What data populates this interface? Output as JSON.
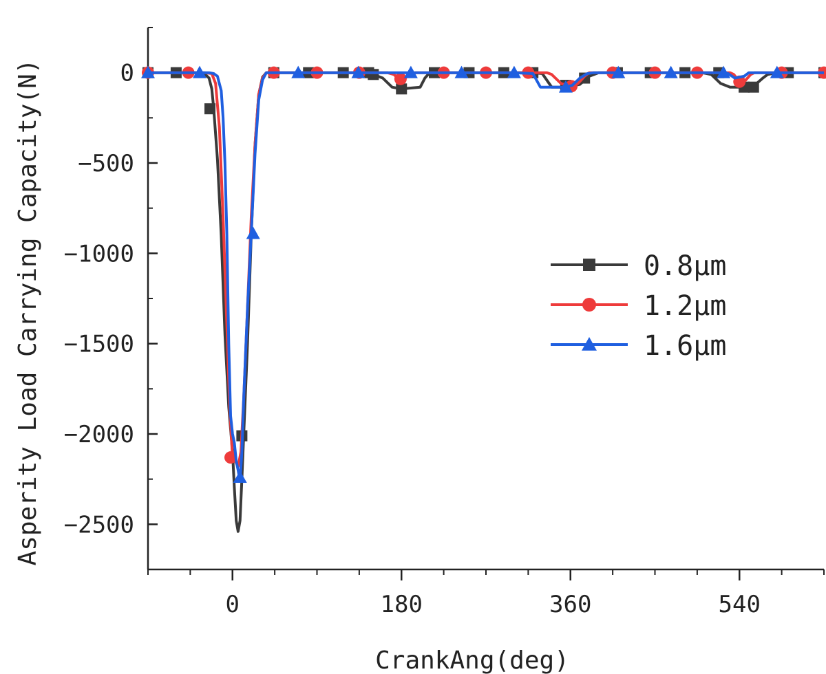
{
  "chart_data": {
    "type": "line",
    "xlabel": "CrankAng(deg)",
    "ylabel": "Asperity Load Carrying Capacity(N)",
    "xlim": [
      -90,
      630
    ],
    "ylim": [
      -2750,
      250
    ],
    "xticks": [
      0,
      180,
      360,
      540
    ],
    "yticks": [
      0,
      -500,
      -1000,
      -1500,
      -2000,
      -2500
    ],
    "x_minor_step": 45,
    "y_minor_step": 250,
    "grid": false,
    "legend_position": "right-center",
    "series": [
      {
        "name": "0.8μm",
        "color": "#3a3a3a",
        "marker": "square",
        "line": [
          [
            -90,
            0
          ],
          [
            -40,
            0
          ],
          [
            -30,
            -5
          ],
          [
            -25,
            -30
          ],
          [
            -22,
            -90
          ],
          [
            -20,
            -200
          ],
          [
            -16,
            -480
          ],
          [
            -12,
            -900
          ],
          [
            -8,
            -1450
          ],
          [
            -4,
            -1850
          ],
          [
            0,
            -2100
          ],
          [
            2,
            -2300
          ],
          [
            4,
            -2480
          ],
          [
            6,
            -2540
          ],
          [
            8,
            -2480
          ],
          [
            10,
            -2250
          ],
          [
            12,
            -2000
          ],
          [
            16,
            -1500
          ],
          [
            20,
            -900
          ],
          [
            24,
            -400
          ],
          [
            28,
            -120
          ],
          [
            32,
            -25
          ],
          [
            36,
            0
          ],
          [
            140,
            0
          ],
          [
            150,
            -10
          ],
          [
            160,
            -30
          ],
          [
            170,
            -80
          ],
          [
            180,
            -90
          ],
          [
            190,
            -85
          ],
          [
            200,
            -80
          ],
          [
            205,
            -30
          ],
          [
            210,
            0
          ],
          [
            320,
            0
          ],
          [
            330,
            -5
          ],
          [
            340,
            -80
          ],
          [
            350,
            -80
          ],
          [
            360,
            -75
          ],
          [
            370,
            -65
          ],
          [
            380,
            -20
          ],
          [
            390,
            0
          ],
          [
            500,
            0
          ],
          [
            510,
            -10
          ],
          [
            520,
            -60
          ],
          [
            530,
            -80
          ],
          [
            545,
            -80
          ],
          [
            555,
            -75
          ],
          [
            565,
            -30
          ],
          [
            570,
            -10
          ],
          [
            580,
            0
          ],
          [
            630,
            0
          ]
        ],
        "markers": [
          [
            -90,
            0
          ],
          [
            -60,
            0
          ],
          [
            -24,
            -200
          ],
          [
            10,
            -2010
          ],
          [
            44,
            0
          ],
          [
            81,
            0
          ],
          [
            118,
            0
          ],
          [
            145,
            0
          ],
          [
            150,
            -10
          ],
          [
            180,
            -90
          ],
          [
            215,
            0
          ],
          [
            252,
            0
          ],
          [
            289,
            0
          ],
          [
            320,
            0
          ],
          [
            355,
            -70
          ],
          [
            375,
            -30
          ],
          [
            410,
            0
          ],
          [
            445,
            0
          ],
          [
            482,
            0
          ],
          [
            518,
            0
          ],
          [
            545,
            -80
          ],
          [
            555,
            -80
          ],
          [
            592,
            0
          ],
          [
            630,
            0
          ]
        ]
      },
      {
        "name": "1.2μm",
        "color": "#ee3b3b",
        "marker": "circle",
        "line": [
          [
            -90,
            0
          ],
          [
            -30,
            0
          ],
          [
            -22,
            -5
          ],
          [
            -18,
            -60
          ],
          [
            -14,
            -300
          ],
          [
            -10,
            -800
          ],
          [
            -6,
            -1400
          ],
          [
            -3,
            -1850
          ],
          [
            0,
            -2130
          ],
          [
            3,
            -2150
          ],
          [
            6,
            -2180
          ],
          [
            9,
            -2100
          ],
          [
            12,
            -1800
          ],
          [
            16,
            -1300
          ],
          [
            20,
            -800
          ],
          [
            24,
            -400
          ],
          [
            28,
            -120
          ],
          [
            32,
            -30
          ],
          [
            36,
            0
          ],
          [
            165,
            0
          ],
          [
            172,
            -10
          ],
          [
            178,
            -40
          ],
          [
            184,
            -30
          ],
          [
            190,
            -5
          ],
          [
            195,
            0
          ],
          [
            335,
            0
          ],
          [
            340,
            -10
          ],
          [
            350,
            -60
          ],
          [
            360,
            -75
          ],
          [
            368,
            -60
          ],
          [
            375,
            -20
          ],
          [
            380,
            0
          ],
          [
            530,
            0
          ],
          [
            534,
            -10
          ],
          [
            540,
            -50
          ],
          [
            546,
            -45
          ],
          [
            552,
            -10
          ],
          [
            556,
            0
          ],
          [
            630,
            0
          ]
        ],
        "markers": [
          [
            -90,
            0
          ],
          [
            -47,
            0
          ],
          [
            -2,
            -2130
          ],
          [
            44,
            0
          ],
          [
            90,
            0
          ],
          [
            135,
            0
          ],
          [
            179,
            -35
          ],
          [
            225,
            0
          ],
          [
            270,
            0
          ],
          [
            315,
            0
          ],
          [
            361,
            -75
          ],
          [
            405,
            0
          ],
          [
            450,
            0
          ],
          [
            495,
            0
          ],
          [
            540,
            -50
          ],
          [
            585,
            0
          ],
          [
            630,
            0
          ]
        ]
      },
      {
        "name": "1.6μm",
        "color": "#1f5fe0",
        "marker": "triangle",
        "line": [
          [
            -90,
            0
          ],
          [
            -25,
            0
          ],
          [
            -20,
            -5
          ],
          [
            -16,
            -20
          ],
          [
            -12,
            -100
          ],
          [
            -10,
            -250
          ],
          [
            -8,
            -500
          ],
          [
            -6,
            -900
          ],
          [
            -4,
            -1500
          ],
          [
            -2,
            -1900
          ],
          [
            0,
            -2000
          ],
          [
            2,
            -2050
          ],
          [
            4,
            -2150
          ],
          [
            6,
            -2200
          ],
          [
            8,
            -2260
          ],
          [
            10,
            -2100
          ],
          [
            12,
            -1800
          ],
          [
            16,
            -1300
          ],
          [
            20,
            -890
          ],
          [
            24,
            -450
          ],
          [
            28,
            -150
          ],
          [
            32,
            -40
          ],
          [
            36,
            0
          ],
          [
            180,
            0
          ],
          [
            190,
            0
          ],
          [
            300,
            0
          ],
          [
            320,
            -5
          ],
          [
            328,
            -80
          ],
          [
            340,
            -80
          ],
          [
            355,
            -80
          ],
          [
            362,
            -70
          ],
          [
            370,
            -30
          ],
          [
            378,
            -5
          ],
          [
            385,
            0
          ],
          [
            520,
            0
          ],
          [
            528,
            -5
          ],
          [
            535,
            -30
          ],
          [
            545,
            -20
          ],
          [
            550,
            0
          ],
          [
            630,
            0
          ]
        ],
        "markers": [
          [
            -90,
            0
          ],
          [
            -35,
            0
          ],
          [
            8,
            -2240
          ],
          [
            22,
            -890
          ],
          [
            70,
            0
          ],
          [
            134,
            0
          ],
          [
            190,
            0
          ],
          [
            244,
            0
          ],
          [
            300,
            0
          ],
          [
            355,
            -80
          ],
          [
            411,
            0
          ],
          [
            467,
            0
          ],
          [
            523,
            0
          ],
          [
            580,
            0
          ]
        ]
      }
    ]
  }
}
